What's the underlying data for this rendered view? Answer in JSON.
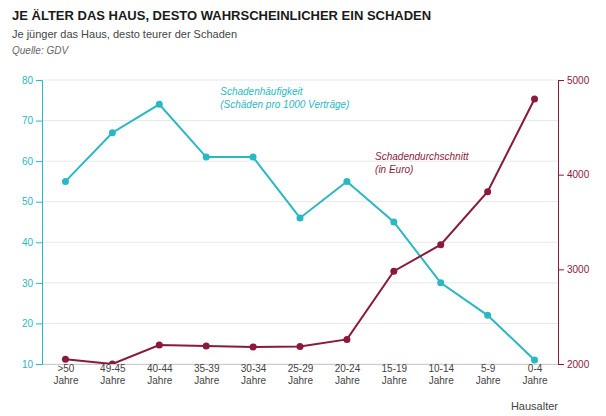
{
  "chart_data": {
    "type": "line",
    "title": "JE ÄLTER DAS HAUS, DESTO WAHRSCHEINLICHER EIN SCHADEN",
    "subtitle": "Je jünger das Haus, desto teurer der Schaden",
    "annotations": [
      "Quelle: GDV"
    ],
    "xlabel": "Hausalter",
    "categories": [
      ">50\nJahre",
      "49-45\nJahre",
      "40-44\nJahre",
      "35-39\nJahre",
      "30-34\nJahre",
      "25-29\nJahre",
      "20-24\nJahre",
      "15-19\nJahre",
      "10-14\nJahre",
      "5-9\nJahre",
      "0-4\nJahre"
    ],
    "series": [
      {
        "name": "Schadenhäufigkeit\n(Schäden pro 1000 Verträge)",
        "color": "#2AB8C2",
        "marker": "circle",
        "values": [
          55,
          67,
          74,
          61,
          61,
          46,
          55,
          45,
          30,
          22,
          11
        ]
      },
      {
        "name": "Schadendurchschnitt\n(in Euro)",
        "color": "#8B1A3A",
        "marker": "circle",
        "axis": "y2",
        "values": [
          2050,
          2000,
          2200,
          2190,
          2180,
          2185,
          2260,
          2980,
          3260,
          3820,
          4800
        ]
      }
    ],
    "ylim": [
      10,
      80
    ],
    "yticks": [
      10,
      20,
      30,
      40,
      50,
      60,
      70,
      80
    ],
    "y2lim": [
      2000,
      5000
    ],
    "y2ticks": [
      2000,
      3000,
      4000,
      5000
    ],
    "grid": true
  }
}
